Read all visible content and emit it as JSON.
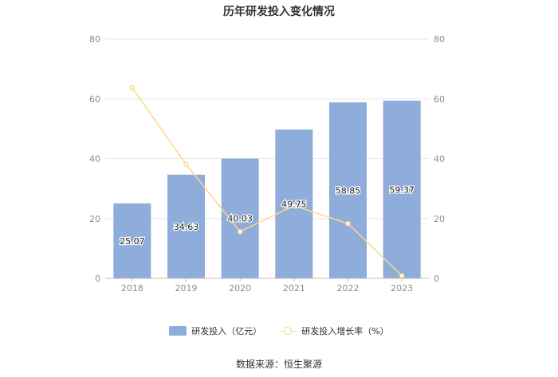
{
  "chart_data": {
    "type": "bar",
    "title": "历年研发投入变化情况",
    "categories": [
      "2018",
      "2019",
      "2020",
      "2021",
      "2022",
      "2023"
    ],
    "series": [
      {
        "name": "研发投入（亿元）",
        "type": "bar",
        "axis": "left",
        "values": [
          25.07,
          34.63,
          40.03,
          49.75,
          58.85,
          59.37
        ],
        "labels": [
          "25.07",
          "34.63",
          "40.03",
          "49.75",
          "58.85",
          "59.37"
        ],
        "color": "#8eaddb"
      },
      {
        "name": "研发投入增长率（%）",
        "type": "line",
        "axis": "right",
        "values": [
          63.7,
          38.1,
          15.6,
          24.3,
          18.3,
          0.9
        ],
        "color": "#ffd58f"
      }
    ],
    "y_left": {
      "ylim": [
        0,
        80
      ],
      "ticks": [
        "0",
        "20",
        "40",
        "60",
        "80"
      ]
    },
    "y_right": {
      "ylim": [
        0,
        80
      ],
      "ticks": [
        "0",
        "20",
        "40",
        "60",
        "80"
      ]
    },
    "grid": true,
    "legend_position": "bottom",
    "source": "数据来源：恒生聚源"
  }
}
